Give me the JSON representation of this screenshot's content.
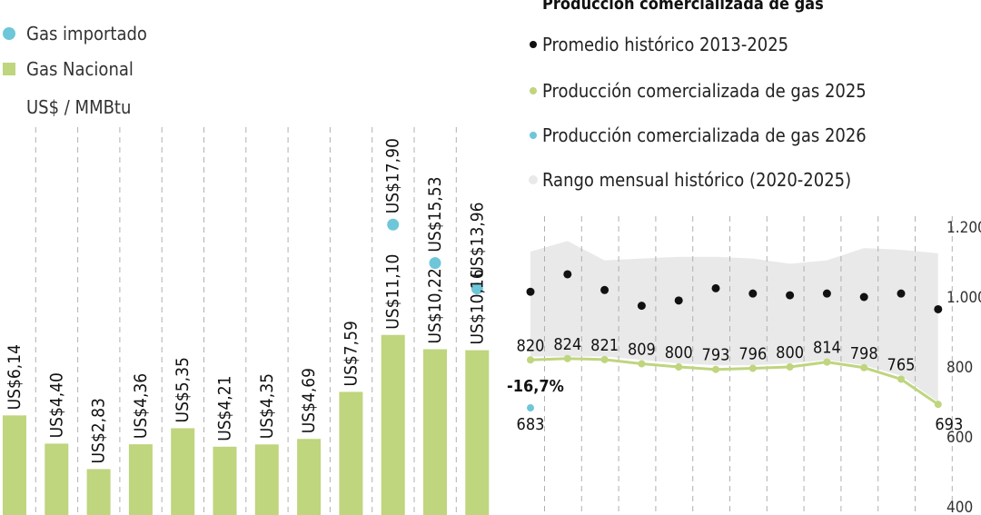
{
  "chart_data": [
    {
      "type": "bar",
      "legend": [
        {
          "label": "Gas importado",
          "color": "#6ec6d9"
        },
        {
          "label": "Gas Nacional",
          "color": "#bfd57e"
        }
      ],
      "unit_label": "US$ / MMBtu",
      "series": [
        {
          "name": "Gas Nacional",
          "values": [
            6.14,
            4.4,
            2.83,
            4.36,
            5.35,
            4.21,
            4.35,
            4.69,
            7.59,
            11.1,
            10.22,
            10.16
          ],
          "labels": [
            "US$6,14",
            "US$4,40",
            "US$2,83",
            "US$4,36",
            "US$5,35",
            "US$4,21",
            "US$4,35",
            "US$4,69",
            "US$7,59",
            "US$11,10",
            "US$10,22",
            "US$10,16"
          ]
        },
        {
          "name": "Gas importado",
          "values": [
            null,
            null,
            null,
            null,
            null,
            null,
            null,
            null,
            null,
            17.9,
            15.53,
            13.96
          ],
          "labels": [
            null,
            null,
            null,
            null,
            null,
            null,
            null,
            null,
            null,
            "US$17,90",
            "US$15,53",
            "US$13,96"
          ]
        }
      ],
      "ylim": [
        0,
        18.5
      ]
    },
    {
      "type": "line",
      "title": "Producción comercializada de gas",
      "legend": [
        {
          "label": "Promedio histórico 2013-2025",
          "color": "#111111"
        },
        {
          "label": "Producción comercializada de gas 2025",
          "color": "#bfd57e"
        },
        {
          "label": "Producción comercializada de gas 2026",
          "color": "#6ec6d9"
        },
        {
          "label": "Rango mensual histórico (2020-2025)",
          "color": "#e9e9e9"
        }
      ],
      "y_ticks": [
        "1.200",
        "1.000",
        "800",
        "600",
        "400"
      ],
      "y_tick_values": [
        1200,
        1000,
        800,
        600,
        400
      ],
      "ylim": [
        400,
        1200
      ],
      "series": [
        {
          "name": "Promedio histórico 2013-2025",
          "values": [
            1015,
            1065,
            1020,
            975,
            990,
            1025,
            1010,
            1005,
            1010,
            1000,
            1010,
            965
          ]
        },
        {
          "name": "Producción comercializada de gas 2025",
          "values": [
            820,
            824,
            821,
            809,
            800,
            793,
            796,
            800,
            814,
            798,
            765,
            693
          ],
          "labels": [
            "820",
            "824",
            "821",
            "809",
            "800",
            "793",
            "796",
            "800",
            "814",
            "798",
            "765",
            "693"
          ]
        },
        {
          "name": "Producción comercializada de gas 2026",
          "values": [
            683
          ],
          "labels": [
            "683"
          ]
        },
        {
          "name": "Rango mensual histórico máx",
          "values": [
            1130,
            1160,
            1105,
            1110,
            1115,
            1115,
            1110,
            1095,
            1105,
            1140,
            1135,
            1125
          ]
        },
        {
          "name": "Rango mensual histórico mín",
          "values": [
            830,
            830,
            830,
            820,
            810,
            805,
            805,
            810,
            820,
            805,
            775,
            700
          ]
        }
      ],
      "annotations": [
        {
          "text": "-16,7%"
        }
      ]
    }
  ]
}
